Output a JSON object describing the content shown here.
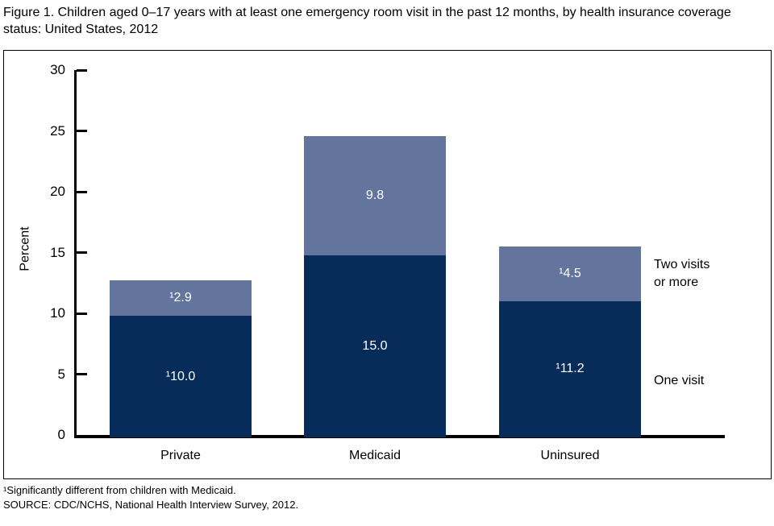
{
  "chart_data": {
    "type": "bar",
    "stacked": true,
    "title": "Figure 1. Children aged 0–17 years with at least one emergency room visit in the past 12 months, by health insurance coverage status: United States, 2012",
    "categories": [
      "Private",
      "Medicaid",
      "Uninsured"
    ],
    "series": [
      {
        "name": "One visit",
        "color": "#082C5A",
        "values": [
          10.0,
          15.0,
          11.2
        ],
        "labels": [
          "¹10.0",
          "15.0",
          "¹11.2"
        ]
      },
      {
        "name": "Two visits or more",
        "color": "#63759D",
        "values": [
          2.9,
          9.8,
          4.5
        ],
        "labels": [
          "¹2.9",
          "9.8",
          "¹4.5"
        ]
      }
    ],
    "xlabel": "",
    "ylabel": "Percent",
    "ylim": [
      0,
      30
    ],
    "yticks": [
      0,
      5,
      10,
      15,
      20,
      25,
      30
    ],
    "grid": false,
    "legend_position": "right-of-last-bar"
  },
  "legend": {
    "two_visits_line1": "Two visits",
    "two_visits_line2": "or more",
    "one_visit": "One visit"
  },
  "footnotes": [
    "¹Significantly different from children with Medicaid.",
    "SOURCE: CDC/NCHS, National Health Interview Survey, 2012."
  ]
}
